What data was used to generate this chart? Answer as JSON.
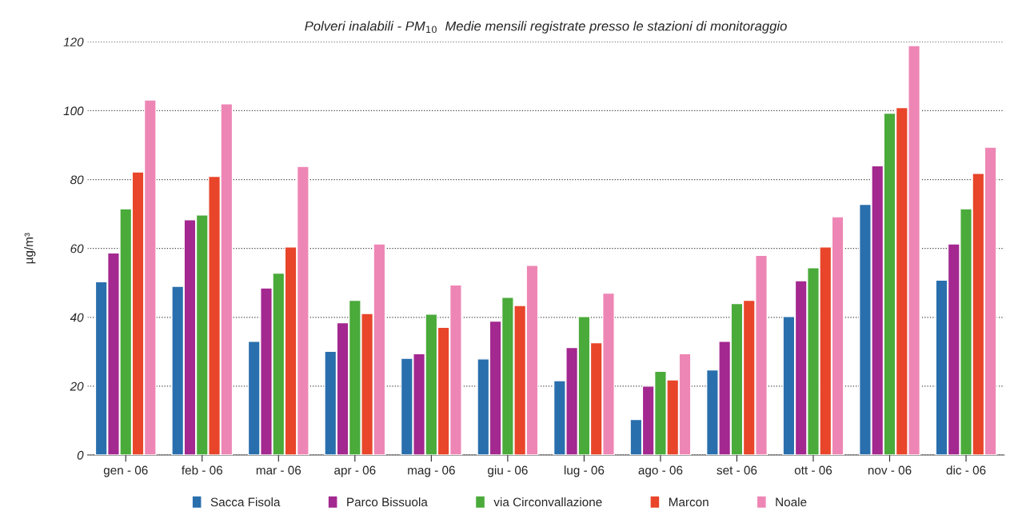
{
  "chart_data": {
    "type": "bar",
    "title": "Polveri inalabili - PM$_{10}$  Medie mensili registrate presso le stazioni di monitoraggio",
    "ylabel": "µg/m³",
    "categories": [
      "gen - 06",
      "feb - 06",
      "mar - 06",
      "apr - 06",
      "mag - 06",
      "giu - 06",
      "lug - 06",
      "ago - 06",
      "set - 06",
      "ott - 06",
      "nov - 06",
      "dic - 06"
    ],
    "series": [
      {
        "name": "Sacca Fisola",
        "color": "#2a6fad",
        "values": [
          50.3,
          49,
          33,
          30.1,
          28.1,
          27.9,
          21.6,
          10.3,
          24.7,
          40.2,
          72.8,
          50.8
        ]
      },
      {
        "name": "Parco Bissuola",
        "color": "#a3288f",
        "values": [
          58.7,
          68.3,
          48.5,
          38.4,
          29.4,
          38.9,
          31.2,
          20,
          33,
          50.6,
          84,
          61.3
        ]
      },
      {
        "name": "via Circonvallazione",
        "color": "#4aaa3a",
        "values": [
          71.5,
          69.7,
          52.8,
          44.9,
          40.9,
          45.8,
          40.2,
          24.3,
          44,
          54.4,
          99.3,
          71.5
        ]
      },
      {
        "name": "Marcon",
        "color": "#e8452a",
        "values": [
          82.2,
          80.9,
          60.4,
          41.1,
          37.1,
          43.4,
          32.6,
          21.8,
          44.9,
          60.4,
          100.9,
          81.8
        ]
      },
      {
        "name": "Noale",
        "color": "#ee86b5",
        "values": [
          103.1,
          102,
          83.8,
          61.3,
          49.4,
          55.1,
          47,
          29.4,
          58,
          69.2,
          118.9,
          89.4
        ]
      }
    ],
    "ylim": [
      0,
      120
    ],
    "yticks": [
      0,
      20,
      40,
      60,
      80,
      100,
      120
    ],
    "grid": "y",
    "legend": "bottom"
  }
}
